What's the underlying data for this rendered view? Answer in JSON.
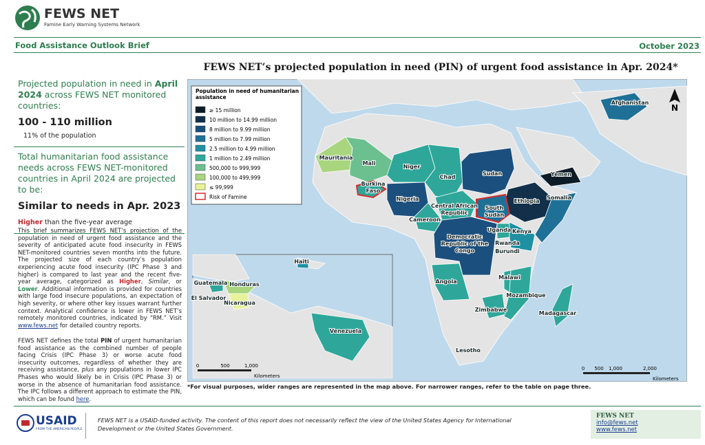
{
  "header": {
    "org": "FEWS NET",
    "org_sub": "Famine Early Warning Systems Network",
    "section": "Food Assistance Outlook Brief",
    "date": "October 2023"
  },
  "summary": {
    "pin_intro": [
      "Projected population in need in ",
      "April 2024",
      "across FEWS NET monitored countries:"
    ],
    "pin_value": "100 - 110 million",
    "pin_share": "11% of the population",
    "needs_intro": "Total humanitarian food assistance needs across FEWS NET-monitored countries in April 2024 are projected to be:",
    "needs_value": "Similar to needs in Apr. 2023",
    "needs_compare": [
      "Higher",
      "than the five-year average"
    ]
  },
  "body": {
    "para1": [
      "This brief summarizes FEWS NET’s projection of the population in need of urgent food assistance and the severity of anticipated acute food insecurity in FEWS NET-monitored countries seven months into the future. The projected size of each country’s population experiencing acute food insecurity (IPC Phase 3 and higher) is compared to last year and the recent five-year average, categorized as ",
      "Higher",
      ", ",
      "Similar",
      ", or ",
      "Lower",
      ". Additional information is provided for countries with large food insecure populations, an expectation of high severity, or where other key issues warrant further context. Analytical confidence is lower in FEWS NET’s remotely monitored countries, indicated by “RM.” Visit ",
      "www.fews.net",
      " for detailed country reports."
    ],
    "para2": [
      "FEWS NET defines the total ",
      "PIN",
      " of urgent humanitarian food assistance as the combined number of people facing Crisis (IPC Phase 3) or worse acute food insecurity outcomes, regardless of whether they are receiving assistance, ",
      "plus",
      " any populations in lower IPC Phases who would likely be in Crisis (IPC Phase 3) or worse in the absence of humanitarian food assistance. The IPC follows a different approach to estimate the PIN, which can be found ",
      "here",
      "."
    ]
  },
  "map": {
    "title": "FEWS NET’s projected population in need (PIN) of urgent food assistance in Apr. 2024*",
    "legend": {
      "title": "Population in need of humanitarian assistance",
      "items": [
        {
          "label": "≥ 15 million",
          "color": "#0d1b26"
        },
        {
          "label": "10 million to 14.99 million",
          "color": "#12304a"
        },
        {
          "label": "8 million to 9.99 million",
          "color": "#1b4f7e"
        },
        {
          "label": "5 million to 7.99 million",
          "color": "#1f7097"
        },
        {
          "label": "2.5 million to 4.99 million",
          "color": "#1f90a3"
        },
        {
          "label": "1 million to 2.49 million",
          "color": "#2ea79a"
        },
        {
          "label": "500,000 to 999,999",
          "color": "#6cc08f"
        },
        {
          "label": "100,000 to 499,999",
          "color": "#a9d57f"
        },
        {
          "label": "≤ 99,999",
          "color": "#e8f29a"
        }
      ],
      "famine": "Risk of Famine"
    },
    "countries": [
      "Mauritania",
      "Mali",
      "Niger",
      "Chad",
      "Sudan",
      "Yemen",
      "Burkina Faso",
      "Nigeria",
      "Ethiopia",
      "Somalia",
      "Central African Republic",
      "South Sudan",
      "Cameroon",
      "Democratic Republic of the Congo",
      "Uganda",
      "Kenya",
      "Rwanda",
      "Burundi",
      "Angola",
      "Malawi",
      "Mozambique",
      "Zimbabwe",
      "Madagascar",
      "Lesotho",
      "Afghanistan",
      "Haiti",
      "Guatemala",
      "Honduras",
      "El Salvador",
      "Nicaragua",
      "Venezuela"
    ],
    "north": "N",
    "scale_main": [
      "0",
      "500",
      "1,000",
      "2,000",
      "Kilometers"
    ],
    "scale_inset": [
      "0",
      "500",
      "1,000",
      "Kilometers"
    ],
    "footnote": "*For visual purposes, wider ranges are represented in the map above. For narrower ranges, refer to the table on page three."
  },
  "footer": {
    "usaid": "USAID",
    "usaid_sub": "FROM THE AMERICAN PEOPLE",
    "disclaimer": "FEWS NET is a USAID-funded activity. The content of this report does not necessarily reflect the view of the United States Agency for International Development or the United States Government.",
    "contact_title": "FEWS NET",
    "email": "info@fews.net",
    "web": "www.fews.net"
  }
}
